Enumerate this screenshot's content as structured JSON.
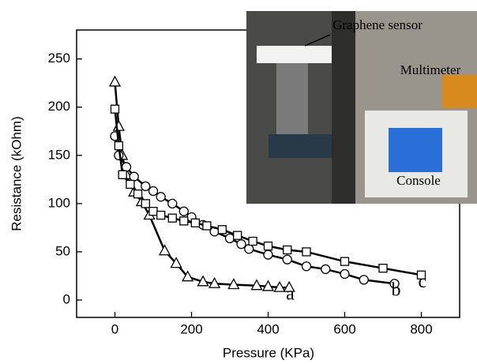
{
  "chart_data": {
    "type": "line",
    "x_label": "Pressure (KPa)",
    "y_label": "Resistance (kOhm)",
    "xlim": [
      -100,
      900
    ],
    "xticks": [
      0,
      200,
      400,
      600,
      800
    ],
    "ylim": [
      -18,
      280
    ],
    "yticks": [
      0,
      50,
      100,
      150,
      200,
      250
    ],
    "series": [
      {
        "name": "a",
        "marker": "triangle",
        "color": "#000000",
        "x": [
          0,
          10,
          19,
          30,
          50,
          70,
          90,
          130,
          160,
          190,
          230,
          260,
          310,
          370,
          400,
          430,
          455
        ],
        "values": [
          226,
          180,
          150,
          130,
          112,
          102,
          88,
          51,
          38,
          24,
          19,
          17,
          16,
          15,
          14,
          13,
          13
        ]
      },
      {
        "name": "b",
        "marker": "circle",
        "color": "#000000",
        "x": [
          0,
          10,
          30,
          50,
          80,
          100,
          120,
          150,
          180,
          200,
          230,
          260,
          300,
          330,
          350,
          400,
          450,
          500,
          550,
          600,
          650,
          730
        ],
        "values": [
          170,
          150,
          138,
          128,
          118,
          113,
          107,
          100,
          92,
          86,
          78,
          71,
          64,
          58,
          53,
          47,
          42,
          35,
          32,
          27,
          21,
          17
        ]
      },
      {
        "name": "c",
        "marker": "square",
        "color": "#000000",
        "x": [
          0,
          10,
          20,
          40,
          60,
          80,
          100,
          120,
          150,
          180,
          210,
          240,
          280,
          320,
          360,
          400,
          450,
          500,
          600,
          700,
          800
        ],
        "values": [
          198,
          160,
          130,
          120,
          110,
          100,
          92,
          88,
          85,
          82,
          80,
          77,
          73,
          67,
          61,
          56,
          52,
          50,
          40,
          33,
          26
        ]
      }
    ]
  },
  "inset": {
    "labels": [
      "Graphene sensor",
      "Multimeter",
      "Console"
    ]
  }
}
